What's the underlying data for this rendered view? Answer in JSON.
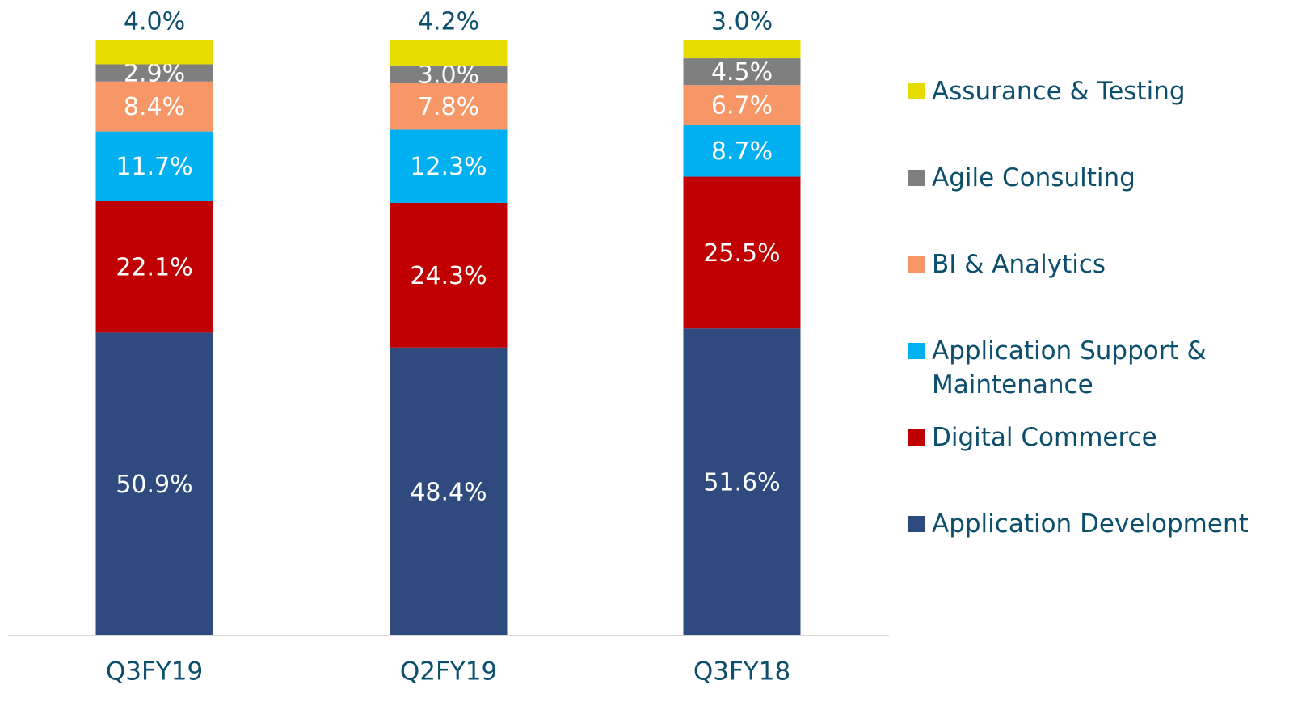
{
  "chart_data": {
    "type": "stacked_bar",
    "categories": [
      "Q3FY19",
      "Q2FY19",
      "Q3FY18"
    ],
    "series": [
      {
        "name": "Application Development",
        "color": "#2e4a7f",
        "values": [
          50.9,
          48.4,
          51.6
        ],
        "value_labels": [
          "50.9%",
          "48.4%",
          "51.6%"
        ]
      },
      {
        "name": "Digital Commerce",
        "color": "#c00000",
        "values": [
          22.1,
          24.3,
          25.5
        ],
        "value_labels": [
          "22.1%",
          "24.3%",
          "25.5%"
        ]
      },
      {
        "name": "Application Support & Maintenance",
        "color": "#00b0f0",
        "values": [
          11.7,
          12.3,
          8.7
        ],
        "value_labels": [
          "11.7%",
          "12.3%",
          "8.7%"
        ]
      },
      {
        "name": "BI & Analytics",
        "color": "#f79767",
        "values": [
          8.4,
          7.8,
          6.7
        ],
        "value_labels": [
          "8.4%",
          "7.8%",
          "6.7%"
        ]
      },
      {
        "name": "Agile Consulting",
        "color": "#7f7f7f",
        "values": [
          2.9,
          3.0,
          4.5
        ],
        "value_labels": [
          "2.9%",
          "3.0%",
          "4.5%"
        ]
      },
      {
        "name": "Assurance & Testing",
        "color": "#e6dc00",
        "values": [
          4.0,
          4.2,
          3.0
        ],
        "value_labels": [
          "4.0%",
          "4.2%",
          "3.0%"
        ]
      }
    ],
    "ylim": [
      0,
      100
    ],
    "legend": "right"
  }
}
